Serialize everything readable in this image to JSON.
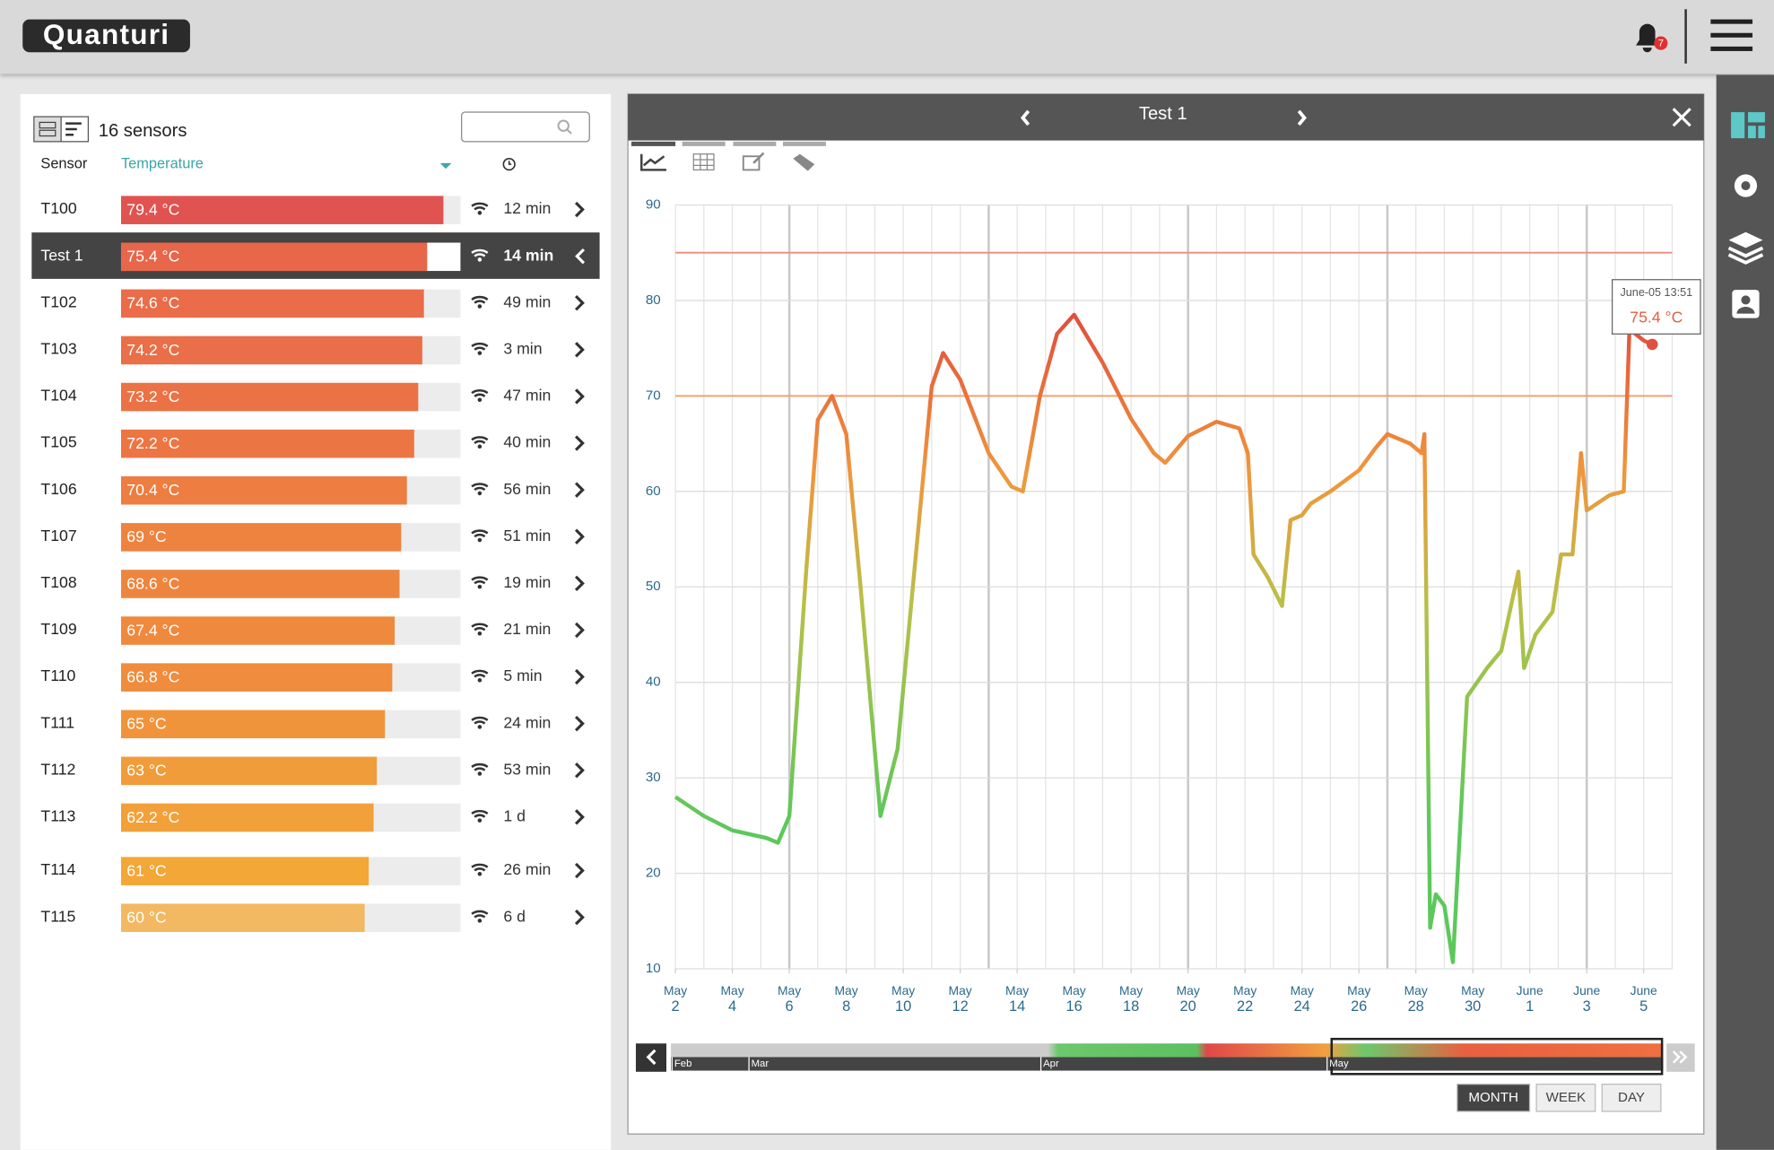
{
  "header": {
    "logo": "Quanturi",
    "notifications": "7"
  },
  "sensor_list": {
    "count": "16 sensors",
    "columns": [
      "Sensor",
      "Temperature"
    ],
    "rows": [
      {
        "name": "T100",
        "temp": 79.4,
        "temp_label": "79.4 °C",
        "age": "12 min",
        "color": "#e05350"
      },
      {
        "name": "Test 1",
        "temp": 75.4,
        "temp_label": "75.4 °C",
        "age": "14 min",
        "color": "#e8664a",
        "selected": true
      },
      {
        "name": "T102",
        "temp": 74.6,
        "temp_label": "74.6 °C",
        "age": "49 min",
        "color": "#ea6c48"
      },
      {
        "name": "T103",
        "temp": 74.2,
        "temp_label": "74.2 °C",
        "age": "3 min",
        "color": "#ea6e47"
      },
      {
        "name": "T104",
        "temp": 73.2,
        "temp_label": "73.2 °C",
        "age": "47 min",
        "color": "#eb7245"
      },
      {
        "name": "T105",
        "temp": 72.2,
        "temp_label": "72.2 °C",
        "age": "40 min",
        "color": "#ec7643"
      },
      {
        "name": "T106",
        "temp": 70.4,
        "temp_label": "70.4 °C",
        "age": "56 min",
        "color": "#ed7d41"
      },
      {
        "name": "T107",
        "temp": 69,
        "temp_label": "69 °C",
        "age": "51 min",
        "color": "#ee833f"
      },
      {
        "name": "T108",
        "temp": 68.6,
        "temp_label": "68.6 °C",
        "age": "19 min",
        "color": "#ee853f"
      },
      {
        "name": "T109",
        "temp": 67.4,
        "temp_label": "67.4 °C",
        "age": "21 min",
        "color": "#ef893e"
      },
      {
        "name": "T110",
        "temp": 66.8,
        "temp_label": "66.8 °C",
        "age": "5 min",
        "color": "#ef8c3d"
      },
      {
        "name": "T111",
        "temp": 65,
        "temp_label": "65 °C",
        "age": "24 min",
        "color": "#f0943b"
      },
      {
        "name": "T112",
        "temp": 63,
        "temp_label": "63 °C",
        "age": "53 min",
        "color": "#f19c3a"
      },
      {
        "name": "T113",
        "temp": 62.2,
        "temp_label": "62.2 °C",
        "age": "1 d",
        "color": "#f2a039"
      },
      {
        "name": "T114",
        "temp": 61,
        "temp_label": "61 °C",
        "age": "26 min",
        "color": "#f3a737"
      },
      {
        "name": "T115",
        "temp": 60,
        "temp_label": "60 °C",
        "age": "6 d",
        "color": "#f2b962"
      }
    ]
  },
  "chart_data": {
    "type": "line",
    "title": "Test 1",
    "x": [
      2,
      3,
      4,
      5.2,
      5.6,
      6,
      6.6,
      7,
      7.5,
      8,
      8.5,
      9.2,
      9.8,
      10.4,
      11,
      11.4,
      12,
      13,
      13.8,
      14.2,
      14.8,
      15.4,
      16,
      17,
      18,
      18.8,
      19.2,
      20,
      21,
      21.8,
      22.1,
      22.3,
      22.8,
      23.3,
      23.6,
      24,
      24.3,
      25,
      26,
      26.6,
      27,
      27.8,
      28.2,
      28.3,
      28.5,
      28.7,
      29,
      29.3,
      29.8,
      30.5,
      31,
      31.6,
      31.8,
      32.2,
      32.8,
      33.1,
      33.5,
      33.8,
      34,
      34.8,
      35.3,
      35.5,
      36,
      36.3
    ],
    "series": [
      {
        "name": "Test 1",
        "values": [
          28,
          26,
          24.5,
          23.7,
          23.2,
          26,
          52,
          67.5,
          70,
          66,
          50,
          26,
          33,
          52,
          71,
          74.5,
          71.7,
          64,
          60.5,
          60,
          70,
          76.5,
          78.5,
          73.5,
          67.6,
          64,
          63,
          65.8,
          67.3,
          66.6,
          64,
          53.4,
          51,
          48,
          57,
          57.5,
          58.7,
          60,
          62.2,
          64.6,
          66,
          65,
          64,
          66,
          14.3,
          17.8,
          16.6,
          10.7,
          38.5,
          41.5,
          43.3,
          51.6,
          41.5,
          45,
          47.4,
          53.4,
          53.4,
          64,
          58,
          59.6,
          60,
          77,
          75.8,
          75.4
        ]
      }
    ],
    "color_scale": [
      {
        "value": 25,
        "color": "#5cc85c"
      },
      {
        "value": 48,
        "color": "#b8c048"
      },
      {
        "value": 62,
        "color": "#f0963c"
      },
      {
        "value": 78,
        "color": "#e0503c"
      }
    ],
    "thresholds": [
      {
        "value": 85,
        "color": "#f08a80"
      },
      {
        "value": 70,
        "color": "#f5a070"
      }
    ],
    "xlim": [
      2,
      37
    ],
    "ylim": [
      10,
      90
    ],
    "yticks": [
      10,
      20,
      30,
      40,
      50,
      60,
      70,
      80,
      90
    ],
    "xticks": [
      {
        "value": 2,
        "month": "May",
        "day": "2"
      },
      {
        "value": 4,
        "month": "May",
        "day": "4"
      },
      {
        "value": 6,
        "month": "May",
        "day": "6"
      },
      {
        "value": 8,
        "month": "May",
        "day": "8"
      },
      {
        "value": 10,
        "month": "May",
        "day": "10"
      },
      {
        "value": 12,
        "month": "May",
        "day": "12"
      },
      {
        "value": 14,
        "month": "May",
        "day": "14"
      },
      {
        "value": 16,
        "month": "May",
        "day": "16"
      },
      {
        "value": 18,
        "month": "May",
        "day": "18"
      },
      {
        "value": 20,
        "month": "May",
        "day": "20"
      },
      {
        "value": 22,
        "month": "May",
        "day": "22"
      },
      {
        "value": 24,
        "month": "May",
        "day": "24"
      },
      {
        "value": 26,
        "month": "May",
        "day": "26"
      },
      {
        "value": 28,
        "month": "May",
        "day": "28"
      },
      {
        "value": 30,
        "month": "May",
        "day": "30"
      },
      {
        "value": 32,
        "month": "June",
        "day": "1"
      },
      {
        "value": 34,
        "month": "June",
        "day": "3"
      },
      {
        "value": 36,
        "month": "June",
        "day": "5"
      }
    ],
    "week_grid": [
      6,
      13,
      20,
      27,
      34
    ],
    "grid": true,
    "tooltip": {
      "time": "June-05 13:51",
      "value": "75.4 °C"
    }
  },
  "timeline": {
    "months": [
      "Feb",
      "Mar",
      "Apr",
      "May"
    ],
    "buttons": [
      "MONTH",
      "WEEK",
      "DAY"
    ]
  }
}
